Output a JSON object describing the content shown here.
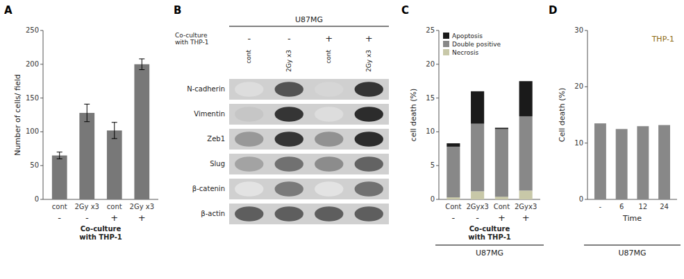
{
  "chart_data": [
    {
      "type": "bar",
      "title": "A",
      "categories": [
        "cont",
        "2Gy x3",
        "cont",
        "2Gy x3"
      ],
      "values": [
        65,
        128,
        102,
        200
      ],
      "errors": [
        5,
        13,
        12,
        8
      ],
      "color": "#787878",
      "ylabel": "Number of cells/ field",
      "ylim": [
        0,
        250
      ],
      "yticks": [
        0,
        50,
        100,
        150,
        200,
        250
      ],
      "group_labels": [
        "-",
        "-",
        "+",
        "+"
      ],
      "group_title": "Co-culture\nwith THP-1"
    },
    {
      "type": "blot",
      "title": "B",
      "cell_line": "U87MG",
      "group_title": "Co-culture\nwith THP-1",
      "group_labels": [
        "-",
        "-",
        "+",
        "+"
      ],
      "categories": [
        "cont",
        "2Gy x3",
        "cont",
        "2Gy x3"
      ],
      "series": [
        {
          "name": "N-cadherin",
          "values": [
            0.15,
            0.75,
            0.18,
            0.88
          ]
        },
        {
          "name": "Vimentin",
          "values": [
            0.25,
            0.88,
            0.15,
            0.92
          ]
        },
        {
          "name": "Zeb1",
          "values": [
            0.45,
            0.88,
            0.48,
            0.92
          ]
        },
        {
          "name": "Slug",
          "values": [
            0.4,
            0.62,
            0.5,
            0.68
          ]
        },
        {
          "name": "β-catenin",
          "values": [
            0.12,
            0.58,
            0.12,
            0.62
          ]
        },
        {
          "name": "β-actin",
          "values": [
            0.7,
            0.7,
            0.7,
            0.7
          ]
        }
      ]
    },
    {
      "type": "bar",
      "title": "C",
      "stacked": true,
      "categories": [
        "Cont",
        "2Gyx3",
        "Cont",
        "2Gyx3"
      ],
      "series": [
        {
          "name": "Necrosis",
          "color": "#c8c8a8",
          "values": [
            0.3,
            1.2,
            0.4,
            1.3
          ]
        },
        {
          "name": "Double positive",
          "color": "#888888",
          "values": [
            7.5,
            10.0,
            10.0,
            11.0
          ]
        },
        {
          "name": "Apoptosis",
          "color": "#1a1a1a",
          "values": [
            0.5,
            4.8,
            0.2,
            5.2
          ]
        }
      ],
      "legend": "upper left",
      "ylabel": "cell death (%)",
      "ylim": [
        0,
        25
      ],
      "yticks": [
        0,
        5,
        10,
        15,
        20,
        25
      ],
      "group_labels": [
        "-",
        "-",
        "+",
        "+"
      ],
      "group_title": "Co-culture\nwith THP-1",
      "cell_line": "U87MG"
    },
    {
      "type": "bar",
      "title": "D",
      "categories": [
        "-",
        "6",
        "12",
        "24"
      ],
      "values": [
        13.5,
        12.5,
        13.0,
        13.2
      ],
      "color": "#888888",
      "ylabel": "Cell death (%)",
      "xlabel": "Time",
      "ylim": [
        0,
        30
      ],
      "yticks": [
        0,
        10,
        20,
        30
      ],
      "cell_line": "U87MG",
      "annotations": [
        {
          "text": "THP-1",
          "color": "#8B6914"
        }
      ]
    }
  ]
}
